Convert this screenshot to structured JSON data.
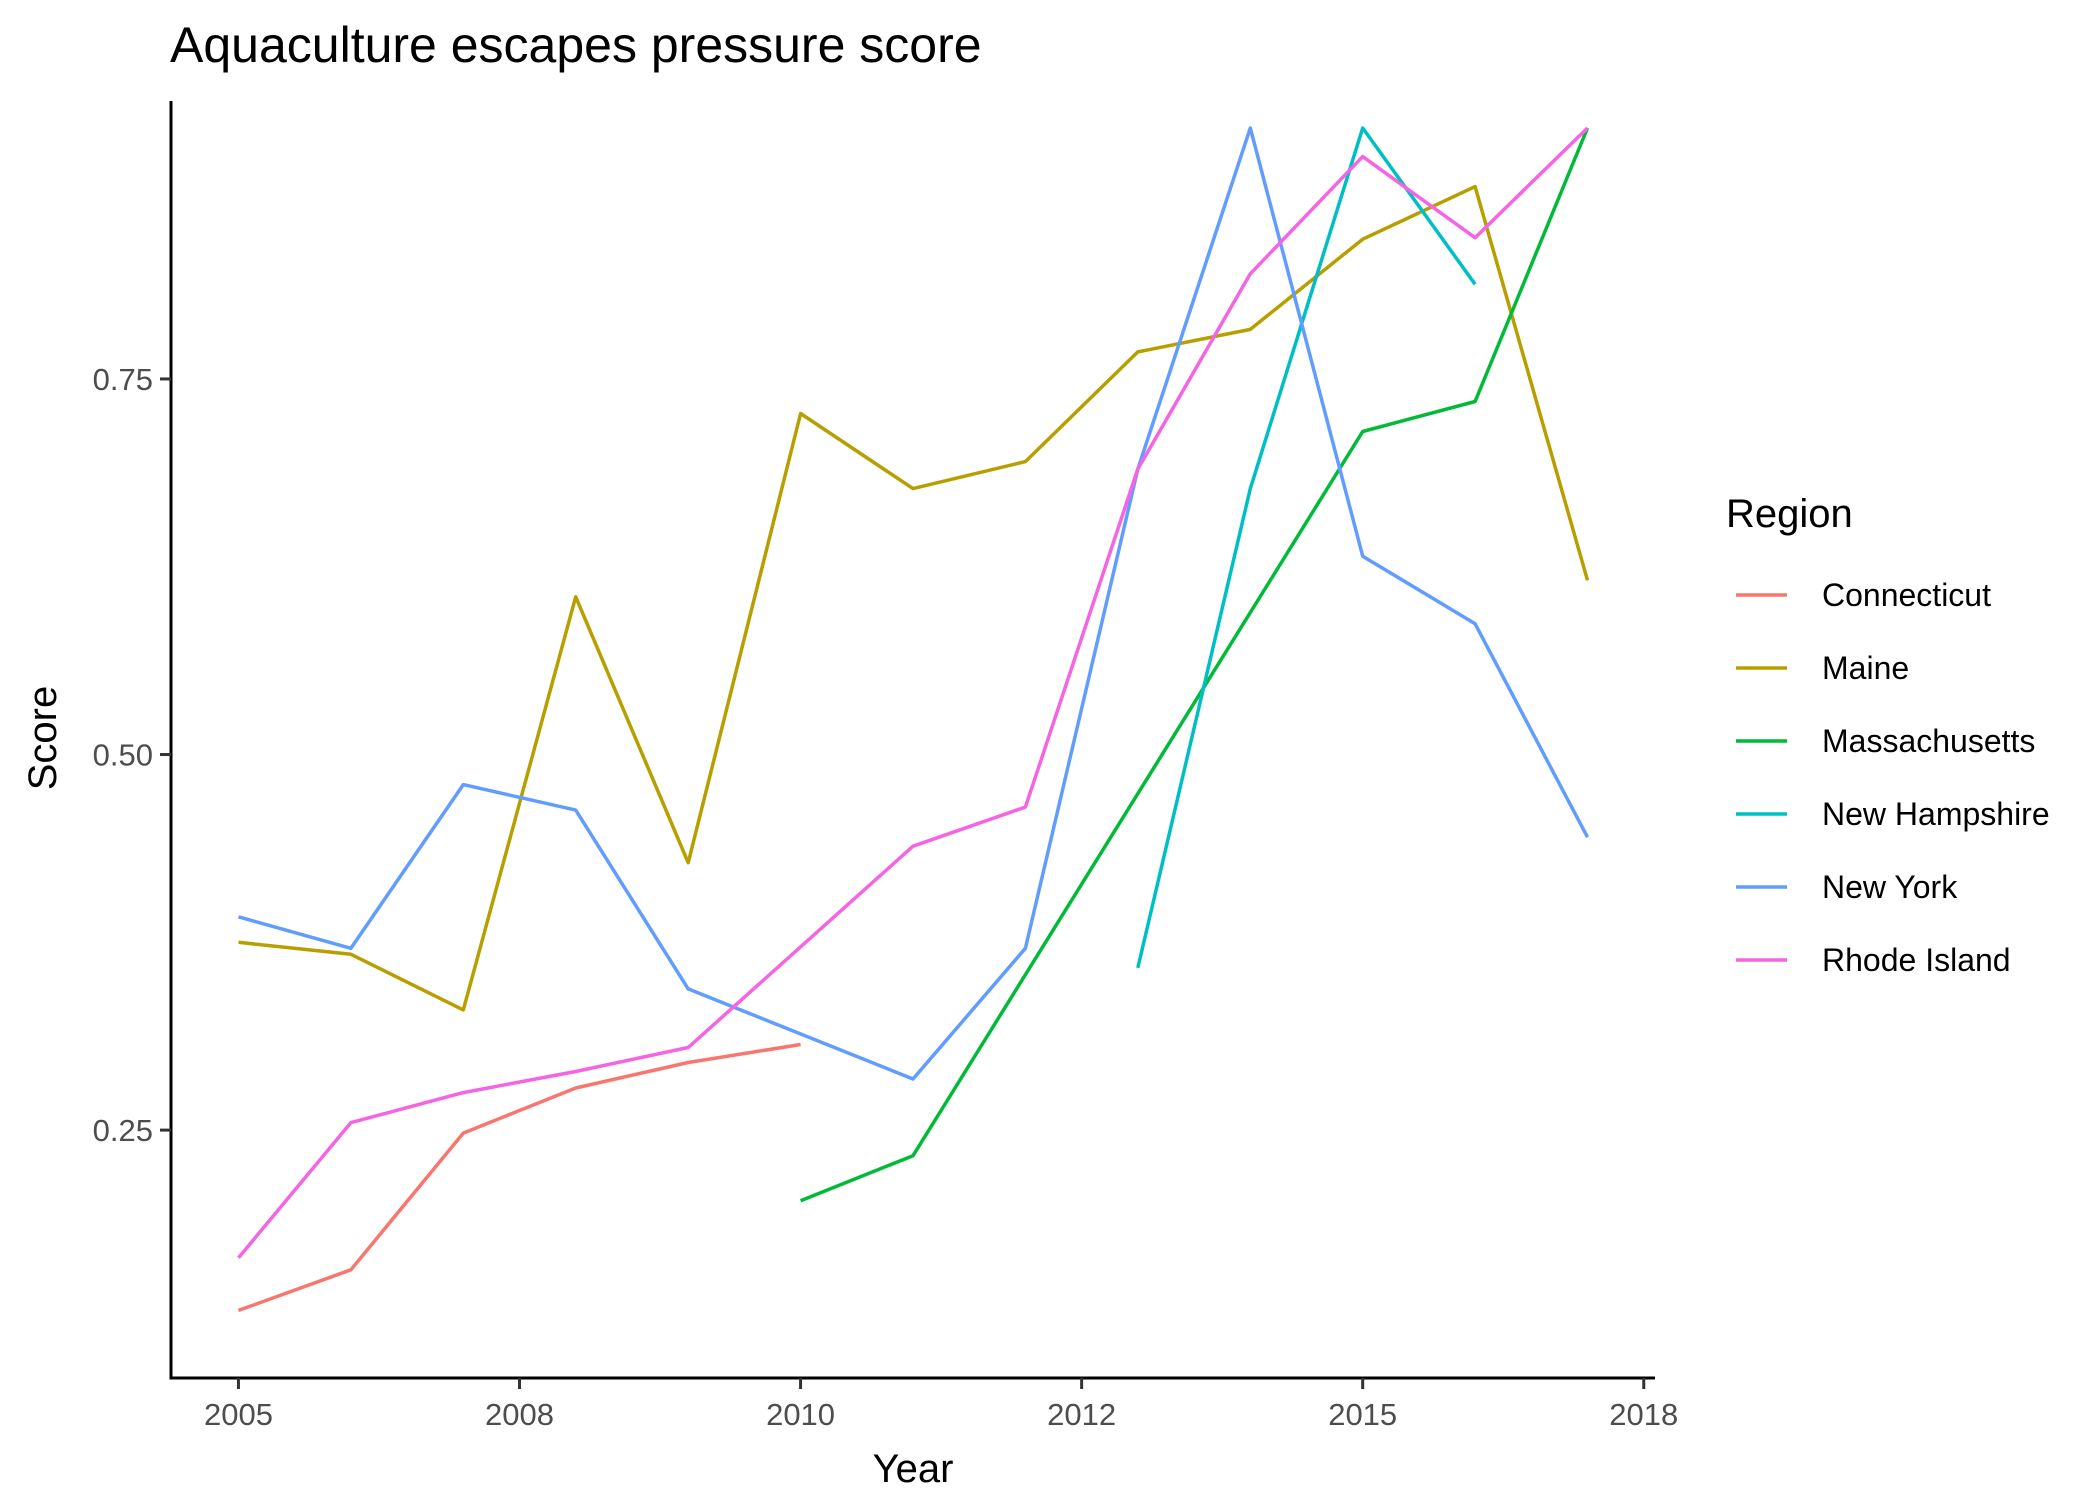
{
  "chart_data": {
    "type": "line",
    "title": "Aquaculture escapes pressure score",
    "xlabel": "Year",
    "ylabel": "Score",
    "xlim": [
      2004.4,
      2017.6
    ],
    "ylim": [
      0.085,
      0.935
    ],
    "x_ticks": [
      {
        "value": 2005,
        "label": "2005"
      },
      {
        "value": 2007.5,
        "label": "2008"
      },
      {
        "value": 2010,
        "label": "2010"
      },
      {
        "value": 2012.5,
        "label": "2012"
      },
      {
        "value": 2015,
        "label": "2015"
      },
      {
        "value": 2017.5,
        "label": "2018"
      }
    ],
    "y_ticks": [
      {
        "value": 0.25,
        "label": "0.25"
      },
      {
        "value": 0.5,
        "label": "0.50"
      },
      {
        "value": 0.75,
        "label": "0.75"
      }
    ],
    "grid": false,
    "legend": {
      "title": "Region",
      "position": "right"
    },
    "series": [
      {
        "name": "Connecticut",
        "color": "#F8766D",
        "x": [
          2005,
          2006,
          2007,
          2008,
          2009,
          2010
        ],
        "y": [
          0.13,
          0.157,
          0.248,
          0.278,
          0.295,
          0.307
        ]
      },
      {
        "name": "Maine",
        "color": "#B79F00",
        "x": [
          2005,
          2006,
          2007,
          2008,
          2009,
          2010,
          2011,
          2012,
          2013,
          2014,
          2015,
          2016,
          2017
        ],
        "y": [
          0.375,
          0.367,
          0.33,
          0.605,
          0.428,
          0.727,
          0.677,
          0.695,
          0.768,
          0.783,
          0.843,
          0.878,
          0.616
        ]
      },
      {
        "name": "Massachusetts",
        "color": "#00BA38",
        "x": [
          2010,
          2011,
          2015,
          2016,
          2017
        ],
        "y": [
          0.203,
          0.233,
          0.715,
          0.735,
          0.917
        ]
      },
      {
        "name": "New Hampshire",
        "color": "#00BFC4",
        "x": [
          2013,
          2014,
          2015,
          2016
        ],
        "y": [
          0.358,
          0.677,
          0.917,
          0.813
        ]
      },
      {
        "name": "New York",
        "color": "#619CFF",
        "x": [
          2005,
          2006,
          2007,
          2008,
          2009,
          2011,
          2012,
          2013,
          2014,
          2015,
          2016,
          2017
        ],
        "y": [
          0.392,
          0.371,
          0.48,
          0.463,
          0.344,
          0.284,
          0.371,
          0.69,
          0.917,
          0.632,
          0.587,
          0.445
        ]
      },
      {
        "name": "Rhode Island",
        "color": "#F564E3",
        "x": [
          2005,
          2006,
          2007,
          2008,
          2009,
          2011,
          2012,
          2013,
          2014,
          2015,
          2016,
          2017
        ],
        "y": [
          0.165,
          0.255,
          0.275,
          0.289,
          0.305,
          0.439,
          0.465,
          0.69,
          0.82,
          0.898,
          0.844,
          0.917
        ]
      }
    ]
  }
}
